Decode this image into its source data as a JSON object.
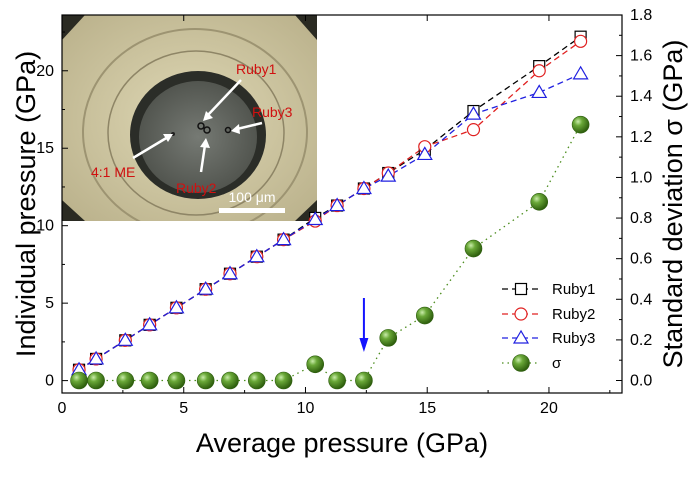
{
  "chart_data": {
    "type": "line",
    "xlabel": "Average pressure (GPa)",
    "ylabel": "Individual pressure (GPa)",
    "y2label": "Standard deviation σ (GPa)",
    "xlim": [
      0,
      23
    ],
    "ylim": [
      -0.8,
      23.6
    ],
    "y2lim": [
      -0.0615,
      1.8
    ],
    "xticks": [
      0,
      5,
      10,
      15,
      20
    ],
    "yticks": [
      0,
      5,
      10,
      15,
      20
    ],
    "y2ticks": [
      0.0,
      0.2,
      0.4,
      0.6,
      0.8,
      1.0,
      1.2,
      1.4,
      1.6,
      1.8
    ],
    "grid": false,
    "legend_position": "bottom-right",
    "colors": {
      "ruby1": "#000000",
      "ruby2": "#e02020",
      "ruby3": "#2020e0",
      "sigma": "#4a8c1c",
      "arrow": "#1414ff"
    },
    "series": [
      {
        "name": "Ruby1",
        "marker": "square",
        "axis": "left",
        "x": [
          0.7,
          1.4,
          2.6,
          3.6,
          4.7,
          5.9,
          6.9,
          8.0,
          9.1,
          10.4,
          11.3,
          12.4,
          13.4,
          14.9,
          16.9,
          19.6,
          21.3
        ],
        "y": [
          0.7,
          1.4,
          2.6,
          3.6,
          4.7,
          5.9,
          6.9,
          8.0,
          9.1,
          10.5,
          11.3,
          12.4,
          13.4,
          14.9,
          17.4,
          20.3,
          22.2
        ]
      },
      {
        "name": "Ruby2",
        "marker": "circle",
        "axis": "left",
        "x": [
          0.7,
          1.4,
          2.6,
          3.6,
          4.7,
          5.9,
          6.9,
          8.0,
          9.1,
          10.4,
          11.3,
          12.4,
          13.4,
          14.9,
          16.9,
          19.6,
          21.3
        ],
        "y": [
          0.7,
          1.4,
          2.6,
          3.6,
          4.7,
          5.9,
          6.9,
          8.0,
          9.1,
          10.3,
          11.3,
          12.4,
          13.4,
          15.1,
          16.2,
          20.0,
          21.9
        ]
      },
      {
        "name": "Ruby3",
        "marker": "triangle",
        "axis": "left",
        "x": [
          0.7,
          1.4,
          2.6,
          3.6,
          4.7,
          5.9,
          6.9,
          8.0,
          9.1,
          10.4,
          11.3,
          12.4,
          13.4,
          14.9,
          16.9,
          19.6,
          21.3
        ],
        "y": [
          0.7,
          1.4,
          2.6,
          3.6,
          4.7,
          5.9,
          6.9,
          8.0,
          9.1,
          10.4,
          11.3,
          12.4,
          13.2,
          14.6,
          17.2,
          18.6,
          19.8
        ]
      },
      {
        "name": "σ",
        "marker": "sphere",
        "axis": "right",
        "x": [
          0.7,
          1.4,
          2.6,
          3.6,
          4.7,
          5.9,
          6.9,
          8.0,
          9.1,
          10.4,
          11.3,
          12.4,
          13.4,
          14.9,
          16.9,
          19.6,
          21.3
        ],
        "y": [
          0.0,
          0.0,
          0.0,
          0.0,
          0.0,
          0.0,
          0.0,
          0.0,
          0.0,
          0.08,
          0.0,
          0.0,
          0.21,
          0.32,
          0.65,
          0.88,
          1.26
        ]
      }
    ],
    "annotation_arrow_x": 12.4,
    "inset": {
      "labels": [
        "Ruby1",
        "Ruby3",
        "4:1 ME",
        "Ruby2"
      ],
      "scale_bar": "100 μm"
    }
  }
}
